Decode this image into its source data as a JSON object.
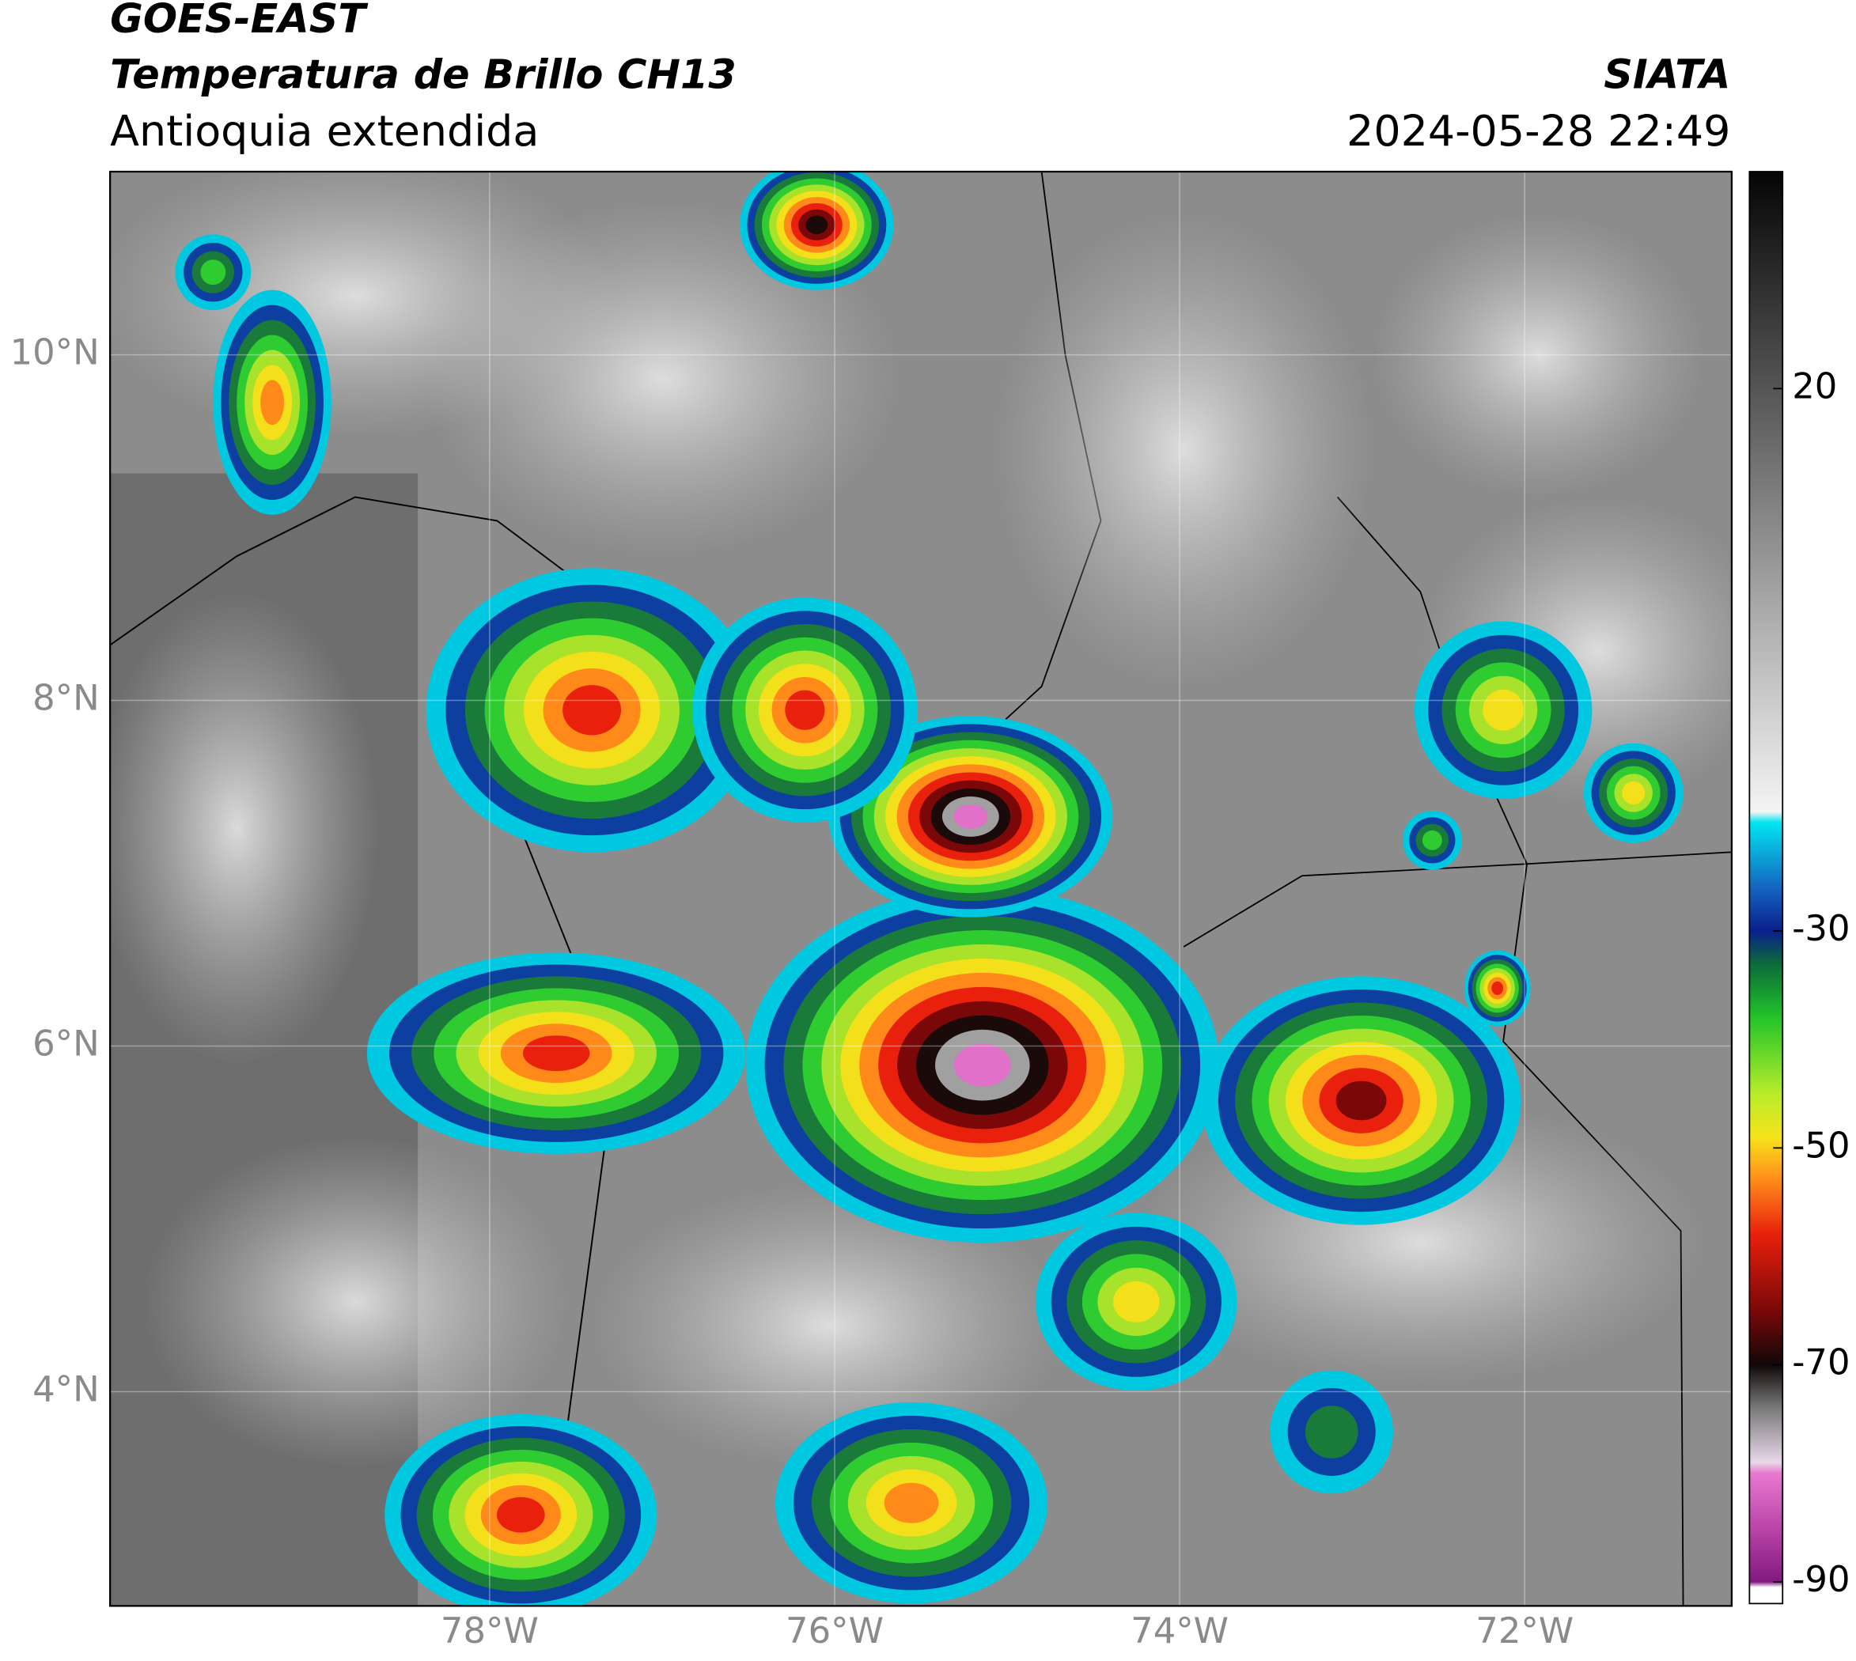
{
  "header": {
    "title": "GOES-EAST",
    "subtitle": "Temperatura de Brillo CH13",
    "region": "Antioquia extendida",
    "source": "SIATA",
    "datetime": "2024-05-28 22:49"
  },
  "map": {
    "xlim": [
      -80.2,
      -70.8
    ],
    "ylim": [
      2.76,
      11.06
    ],
    "grid": true,
    "xticks": [
      {
        "value": -78,
        "label": "78°W"
      },
      {
        "value": -76,
        "label": "76°W"
      },
      {
        "value": -74,
        "label": "74°W"
      },
      {
        "value": -72,
        "label": "72°W"
      }
    ],
    "yticks": [
      {
        "value": 4,
        "label": "4°N"
      },
      {
        "value": 6,
        "label": "6°N"
      },
      {
        "value": 8,
        "label": "8°N"
      },
      {
        "value": 10,
        "label": "10°N"
      }
    ]
  },
  "colorbar": {
    "lim": [
      -92,
      40
    ],
    "ticks": [
      20,
      -30,
      -50,
      -70,
      -90
    ],
    "stops": [
      {
        "value": 40,
        "color": "#050505"
      },
      {
        "value": 20,
        "color": "#555555"
      },
      {
        "value": 0,
        "color": "#a8a8a8"
      },
      {
        "value": -19,
        "color": "#f4f4f4"
      },
      {
        "value": -20,
        "color": "#00e5f0"
      },
      {
        "value": -26,
        "color": "#1565c0"
      },
      {
        "value": -30,
        "color": "#0a1f8c"
      },
      {
        "value": -33,
        "color": "#0b6a3a"
      },
      {
        "value": -38,
        "color": "#22c42a"
      },
      {
        "value": -45,
        "color": "#b8ec2a"
      },
      {
        "value": -49,
        "color": "#f6e41a"
      },
      {
        "value": -53,
        "color": "#ff8a1a"
      },
      {
        "value": -58,
        "color": "#e8200c"
      },
      {
        "value": -65,
        "color": "#7a0808"
      },
      {
        "value": -70,
        "color": "#100808"
      },
      {
        "value": -74,
        "color": "#7a7a7a"
      },
      {
        "value": -79,
        "color": "#e8d8e8"
      },
      {
        "value": -80,
        "color": "#e878d0"
      },
      {
        "value": -86,
        "color": "#b03ca0"
      },
      {
        "value": -90,
        "color": "#801a80"
      },
      {
        "value": -90.5,
        "color": "#ffffff"
      }
    ]
  }
}
